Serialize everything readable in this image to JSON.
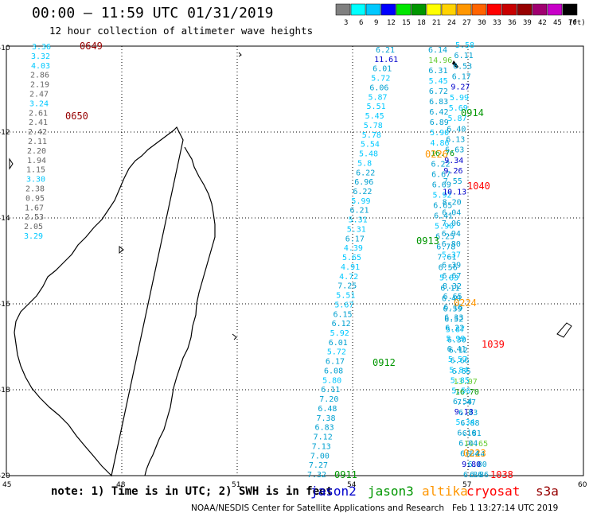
{
  "header": {
    "title": "00:00 – 11:59 UTC 01/31/2019",
    "subtitle": "12 hour collection of altimeter wave heights"
  },
  "legend": {
    "unit_label": "(ft)",
    "bins": [
      {
        "label": "3",
        "color": "#808080"
      },
      {
        "label": "6",
        "color": "#00ffff"
      },
      {
        "label": "9",
        "color": "#00c8ff"
      },
      {
        "label": "12",
        "color": "#0000ff"
      },
      {
        "label": "15",
        "color": "#00e600"
      },
      {
        "label": "18",
        "color": "#009600"
      },
      {
        "label": "21",
        "color": "#ffff00"
      },
      {
        "label": "24",
        "color": "#ffd200"
      },
      {
        "label": "27",
        "color": "#ff9600"
      },
      {
        "label": "30",
        "color": "#ff6400"
      },
      {
        "label": "33",
        "color": "#ff0000"
      },
      {
        "label": "36",
        "color": "#c80000"
      },
      {
        "label": "39",
        "color": "#960000"
      },
      {
        "label": "42",
        "color": "#a00070"
      },
      {
        "label": "45",
        "color": "#c800c8"
      },
      {
        "label": "70",
        "color": "#000000"
      }
    ]
  },
  "axes": {
    "lat_labels": [
      "-10",
      "-12",
      "-14",
      "-16",
      "-18",
      "-20"
    ],
    "lon_labels": [
      "45",
      "48",
      "51",
      "54",
      "57",
      "60"
    ]
  },
  "colors": {
    "jason2": "#0000cc",
    "jason3": "#009600",
    "altika": "#ff9600",
    "cryosat": "#ff0000",
    "s3a": "#960000",
    "gray": "#666666",
    "cyan": "#00c8ff"
  },
  "tracks": {
    "west_coast": [
      {
        "v": "3.36",
        "c": "cyan"
      },
      {
        "v": "3.32",
        "c": "cyan"
      },
      {
        "v": "4.03",
        "c": "cyan"
      },
      {
        "v": "2.86",
        "c": "gray"
      },
      {
        "v": "2.19",
        "c": "gray"
      },
      {
        "v": "2.47",
        "c": "gray"
      },
      {
        "v": "3.24",
        "c": "cyan"
      },
      {
        "v": "2.61",
        "c": "gray"
      },
      {
        "v": "2.41",
        "c": "gray"
      },
      {
        "v": "2.42",
        "c": "gray"
      },
      {
        "v": "2.11",
        "c": "gray"
      },
      {
        "v": "2.20",
        "c": "gray"
      },
      {
        "v": "1.94",
        "c": "gray"
      },
      {
        "v": "1.15",
        "c": "gray"
      },
      {
        "v": "3.30",
        "c": "cyan"
      },
      {
        "v": "2.38",
        "c": "gray"
      },
      {
        "v": "0.95",
        "c": "gray"
      },
      {
        "v": "1.67",
        "c": "gray"
      },
      {
        "v": "2.53",
        "c": "gray"
      },
      {
        "v": "2.05",
        "c": "gray"
      },
      {
        "v": "3.29",
        "c": "cyan"
      }
    ],
    "track_a": [
      "6.21",
      "11.61",
      "6.01",
      "5.72",
      "6.06",
      "5.87",
      "5.51",
      "5.45",
      "5.78",
      "5.78",
      "5.54",
      "5.48",
      "5.8",
      "6.22",
      "6.96",
      "6.22",
      "5.99",
      "6.21",
      "5.31",
      "5.31",
      "6.17",
      "4.39",
      "5.65",
      "4.91",
      "4.72",
      "7.25",
      "5.51",
      "5.67",
      "6.15",
      "6.12",
      "5.92",
      "6.01",
      "5.72",
      "6.17",
      "6.08",
      "5.80",
      "6.11",
      "7.20",
      "6.48",
      "7.38",
      "6.83",
      "7.12",
      "7.13",
      "7.00",
      "7.27",
      "7.32"
    ],
    "track_b": [
      "6.14",
      "14.96",
      "6.31",
      "5.45",
      "6.72",
      "6.83",
      "6.42",
      "6.89",
      "5.90",
      "4.86",
      "16.76",
      "6.22",
      "6.67",
      "6.69",
      "5.92",
      "6.65",
      "6.41",
      "5.90",
      "6.25",
      "6.78",
      "7.61",
      "6.56",
      "5.63",
      "6.11",
      "6.40",
      "6.59",
      "6.52",
      "5.87",
      "6.30",
      "6.12",
      "6.66",
      "6.65",
      "13.07",
      "16.70",
      "7.47",
      "6.83",
      "6.88",
      "6.81",
      "14.65",
      "6.44",
      "6.80",
      "6.86"
    ],
    "track_c": [
      "5.58",
      "6.11",
      "6.53",
      "6.17",
      "9.27",
      "5.99",
      "5.69",
      "5.87",
      "6.40",
      "6.13",
      "6.63",
      "9.34",
      "9.26",
      "7.55",
      "10.13",
      "8.20",
      "6.04",
      "7.06",
      "6.94",
      "6.80",
      "5.37",
      "6.39",
      "6.67",
      "8.32",
      "6.65",
      "6.18",
      "6.33",
      "6.22",
      "5.99",
      "6.41",
      "5.57",
      "5.84",
      "5.85",
      "5.56",
      "6.54",
      "9.13",
      "5.34",
      "6.16",
      "6.04",
      "6.84",
      "9.80",
      "6.86"
    ]
  },
  "pass_labels": [
    {
      "text": "0649",
      "c": "s3a"
    },
    {
      "text": "0650",
      "c": "s3a"
    },
    {
      "text": "0914",
      "c": "jason3"
    },
    {
      "text": "0226",
      "c": "altika"
    },
    {
      "text": "1040",
      "c": "cryosat"
    },
    {
      "text": "0913",
      "c": "jason3"
    },
    {
      "text": "0224",
      "c": "altika"
    },
    {
      "text": "1039",
      "c": "cryosat"
    },
    {
      "text": "0912",
      "c": "jason3"
    },
    {
      "text": "0223",
      "c": "altika"
    },
    {
      "text": "1038",
      "c": "cryosat"
    },
    {
      "text": "0911",
      "c": "jason3"
    }
  ],
  "footer": {
    "note": "note: 1) Time is in UTC; 2) SWH is in feet",
    "satellites": [
      {
        "name": "jason2",
        "c": "jason2"
      },
      {
        "name": "jason3",
        "c": "jason3"
      },
      {
        "name": "altika",
        "c": "altika"
      },
      {
        "name": "cryosat",
        "c": "cryosat"
      },
      {
        "name": "s3a",
        "c": "s3a"
      }
    ],
    "credit": "NOAA/NESDIS Center for Satellite Applications and Research",
    "timestamp": "Feb  1 13:27:14 UTC 2019"
  }
}
